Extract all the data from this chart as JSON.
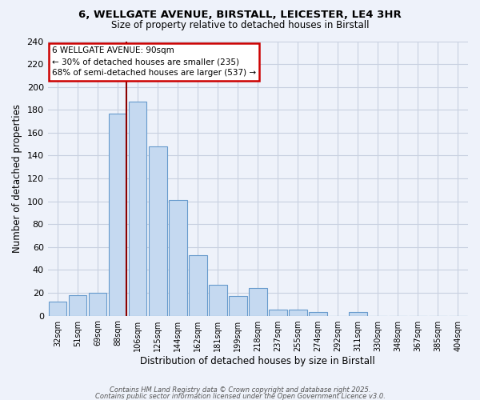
{
  "title_line1": "6, WELLGATE AVENUE, BIRSTALL, LEICESTER, LE4 3HR",
  "title_line2": "Size of property relative to detached houses in Birstall",
  "xlabel": "Distribution of detached houses by size in Birstall",
  "ylabel": "Number of detached properties",
  "bar_color": "#c5d9f0",
  "bar_edge_color": "#6699cc",
  "background_color": "#eef2fa",
  "categories": [
    "32sqm",
    "51sqm",
    "69sqm",
    "88sqm",
    "106sqm",
    "125sqm",
    "144sqm",
    "162sqm",
    "181sqm",
    "199sqm",
    "218sqm",
    "237sqm",
    "255sqm",
    "274sqm",
    "292sqm",
    "311sqm",
    "330sqm",
    "348sqm",
    "367sqm",
    "385sqm",
    "404sqm"
  ],
  "values": [
    12,
    18,
    20,
    177,
    187,
    148,
    101,
    53,
    27,
    17,
    24,
    5,
    5,
    3,
    0,
    3,
    0,
    0,
    0,
    0,
    0
  ],
  "ylim": [
    0,
    240
  ],
  "yticks": [
    0,
    20,
    40,
    60,
    80,
    100,
    120,
    140,
    160,
    180,
    200,
    220,
    240
  ],
  "annotation_title": "6 WELLGATE AVENUE: 90sqm",
  "annotation_line1": "← 30% of detached houses are smaller (235)",
  "annotation_line2": "68% of semi-detached houses are larger (537) →",
  "annotation_box_color": "#ffffff",
  "annotation_box_edge_color": "#cc0000",
  "property_line_color": "#8b0000",
  "property_bar_index": 3,
  "footer_line1": "Contains HM Land Registry data © Crown copyright and database right 2025.",
  "footer_line2": "Contains public sector information licensed under the Open Government Licence v3.0.",
  "grid_color": "#c8d0e0"
}
